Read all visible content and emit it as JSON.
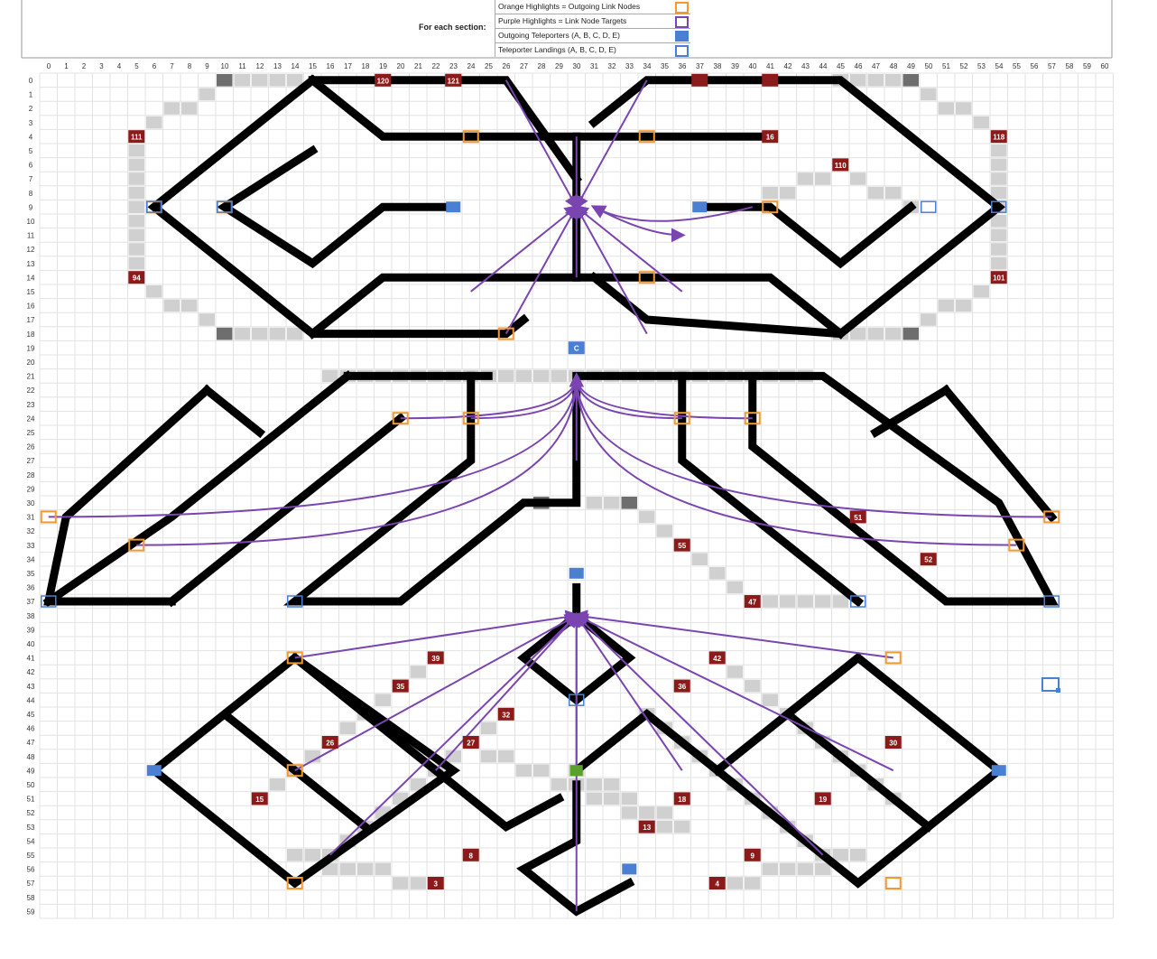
{
  "legend": {
    "heading": "For each section:",
    "items": [
      {
        "label": "Orange Highlights = Outgoing Link Nodes",
        "swatch": "orange-outline"
      },
      {
        "label": "Purple Highlights = Link Node Targets",
        "swatch": "purple-outline"
      },
      {
        "label": "Outgoing Teleporters (A, B, C, D, E)",
        "swatch": "blue-fill"
      },
      {
        "label": "Teleporter Landings (A, B, C, D, E)",
        "swatch": "blue-outline"
      }
    ]
  },
  "colors": {
    "gray_light": "#d0d0d0",
    "gray_dark": "#6e6e6e",
    "red_node": "#8b1a1a",
    "orange": "#f29a2e",
    "purple": "#7a45b0",
    "blue": "#4a7fd4",
    "green": "#5aa02c",
    "black": "#000000"
  },
  "grid": {
    "col_labels": [
      "0",
      "1",
      "2",
      "3",
      "4",
      "5",
      "6",
      "7",
      "8",
      "9",
      "10",
      "11",
      "12",
      "13",
      "14",
      "15",
      "16",
      "17",
      "18",
      "19",
      "20",
      "21",
      "22",
      "23",
      "24",
      "25",
      "26",
      "27",
      "28",
      "29",
      "30",
      "31",
      "32",
      "33",
      "34",
      "35",
      "36",
      "37",
      "38",
      "39",
      "40",
      "41",
      "42",
      "43",
      "44",
      "45",
      "46",
      "47",
      "48",
      "49",
      "50",
      "51",
      "52",
      "53",
      "54",
      "55",
      "56",
      "57",
      "58",
      "59",
      "60"
    ],
    "row_labels": [
      "0",
      "1",
      "2",
      "3",
      "4",
      "5",
      "6",
      "7",
      "8",
      "9",
      "10",
      "11",
      "12",
      "13",
      "14",
      "15",
      "16",
      "17",
      "18",
      "19",
      "20",
      "21",
      "22",
      "23",
      "24",
      "25",
      "26",
      "27",
      "28",
      "29",
      "30",
      "31",
      "32",
      "33",
      "34",
      "35",
      "36",
      "37",
      "38",
      "39",
      "40",
      "41",
      "42",
      "43",
      "44",
      "45",
      "46",
      "47",
      "48",
      "49",
      "50",
      "51",
      "52",
      "53",
      "54",
      "55",
      "56",
      "57",
      "58",
      "59"
    ]
  },
  "nodes": [
    {
      "label": "111",
      "c": 5,
      "r": 4
    },
    {
      "label": "118",
      "c": 54,
      "r": 4
    },
    {
      "label": "110",
      "c": 45,
      "r": 6
    },
    {
      "label": "94",
      "c": 5,
      "r": 14
    },
    {
      "label": "101",
      "c": 54,
      "r": 14
    },
    {
      "label": "120",
      "c": 19,
      "r": 0
    },
    {
      "label": "121",
      "c": 23,
      "r": 0
    },
    {
      "label": "",
      "c": 37,
      "r": 0
    },
    {
      "label": "",
      "c": 41,
      "r": 0
    },
    {
      "label": "16",
      "c": 41,
      "r": 4
    },
    {
      "label": "C",
      "c": 30,
      "r": 19,
      "kind": "blue"
    },
    {
      "label": "55",
      "c": 36,
      "r": 33
    },
    {
      "label": "47",
      "c": 40,
      "r": 37
    },
    {
      "label": "52",
      "c": 50,
      "r": 34
    },
    {
      "label": "51",
      "c": 46,
      "r": 31
    },
    {
      "label": "39",
      "c": 22,
      "r": 41
    },
    {
      "label": "42",
      "c": 38,
      "r": 41
    },
    {
      "label": "35",
      "c": 20,
      "r": 43
    },
    {
      "label": "36",
      "c": 36,
      "r": 43
    },
    {
      "label": "32",
      "c": 26,
      "r": 45
    },
    {
      "label": "26",
      "c": 16,
      "r": 47
    },
    {
      "label": "27",
      "c": 24,
      "r": 47
    },
    {
      "label": "30",
      "c": 48,
      "r": 47
    },
    {
      "label": "15",
      "c": 12,
      "r": 51
    },
    {
      "label": "18",
      "c": 36,
      "r": 51
    },
    {
      "label": "19",
      "c": 44,
      "r": 51
    },
    {
      "label": "13",
      "c": 34,
      "r": 53
    },
    {
      "label": "8",
      "c": 24,
      "r": 55
    },
    {
      "label": "9",
      "c": 40,
      "r": 55
    },
    {
      "label": "3",
      "c": 22,
      "r": 57
    },
    {
      "label": "4",
      "c": 38,
      "r": 57
    }
  ]
}
